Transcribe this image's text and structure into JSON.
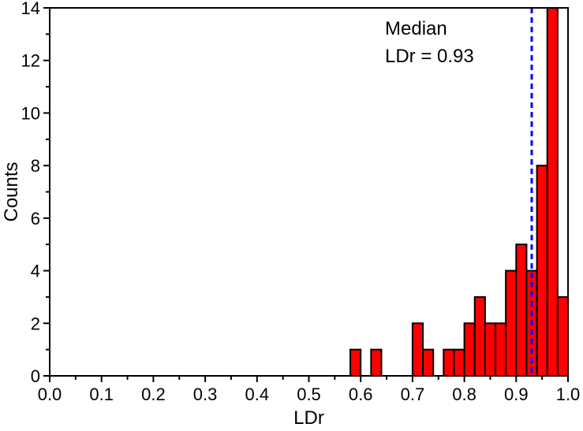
{
  "chart_data": {
    "type": "bar",
    "subtype": "histogram",
    "xlabel": "LDr",
    "ylabel": "Counts",
    "xlim": [
      0.0,
      1.0
    ],
    "ylim": [
      0,
      14
    ],
    "xticks": [
      "0.0",
      "0.1",
      "0.2",
      "0.3",
      "0.4",
      "0.5",
      "0.6",
      "0.7",
      "0.8",
      "0.9",
      "1.0"
    ],
    "yticks": [
      "0",
      "2",
      "4",
      "6",
      "8",
      "10",
      "12",
      "14"
    ],
    "bin_width": 0.02,
    "bins": [
      {
        "x0": 0.58,
        "x1": 0.6,
        "count": 1
      },
      {
        "x0": 0.62,
        "x1": 0.64,
        "count": 1
      },
      {
        "x0": 0.7,
        "x1": 0.72,
        "count": 2
      },
      {
        "x0": 0.72,
        "x1": 0.74,
        "count": 1
      },
      {
        "x0": 0.76,
        "x1": 0.78,
        "count": 1
      },
      {
        "x0": 0.78,
        "x1": 0.8,
        "count": 1
      },
      {
        "x0": 0.8,
        "x1": 0.82,
        "count": 2
      },
      {
        "x0": 0.82,
        "x1": 0.84,
        "count": 3
      },
      {
        "x0": 0.84,
        "x1": 0.86,
        "count": 2
      },
      {
        "x0": 0.86,
        "x1": 0.88,
        "count": 2
      },
      {
        "x0": 0.88,
        "x1": 0.9,
        "count": 4
      },
      {
        "x0": 0.9,
        "x1": 0.92,
        "count": 5
      },
      {
        "x0": 0.92,
        "x1": 0.94,
        "count": 4
      },
      {
        "x0": 0.94,
        "x1": 0.96,
        "count": 8
      },
      {
        "x0": 0.96,
        "x1": 0.98,
        "count": 14
      },
      {
        "x0": 0.98,
        "x1": 1.0,
        "count": 3
      }
    ],
    "median": {
      "value": 0.93,
      "label_line1": "Median",
      "label_line2": "LDr = 0.93",
      "color": "#0000ff"
    },
    "bar_color": "#ff0000",
    "grid": false,
    "legend": "none"
  }
}
